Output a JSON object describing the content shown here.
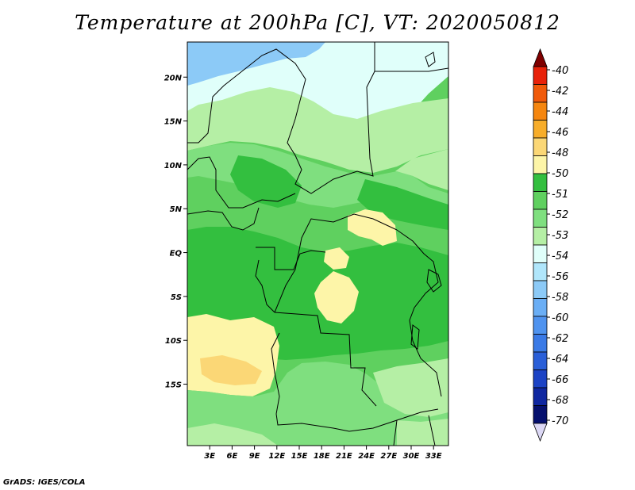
{
  "title": "Temperature at 200hPa [C], VT: 2020050812",
  "credit": "GrADS: IGES/COLA",
  "map": {
    "lon_range": [
      0,
      35
    ],
    "lat_range": [
      -22,
      24
    ],
    "lat_ticks": [
      {
        "value": 20,
        "label": "20N"
      },
      {
        "value": 15,
        "label": "15N"
      },
      {
        "value": 10,
        "label": "10N"
      },
      {
        "value": 5,
        "label": "5N"
      },
      {
        "value": 0,
        "label": "EQ"
      },
      {
        "value": -5,
        "label": "5S"
      },
      {
        "value": -10,
        "label": "10S"
      },
      {
        "value": -15,
        "label": "15S"
      }
    ],
    "lon_ticks": [
      {
        "value": 3,
        "label": "3E"
      },
      {
        "value": 6,
        "label": "6E"
      },
      {
        "value": 9,
        "label": "9E"
      },
      {
        "value": 12,
        "label": "12E"
      },
      {
        "value": 15,
        "label": "15E"
      },
      {
        "value": 18,
        "label": "18E"
      },
      {
        "value": 21,
        "label": "21E"
      },
      {
        "value": 24,
        "label": "24E"
      },
      {
        "value": 27,
        "label": "27E"
      },
      {
        "value": 30,
        "label": "30E"
      },
      {
        "value": 33,
        "label": "33E"
      }
    ]
  },
  "colorbar": {
    "colors": [
      "#7f0000",
      "#e8220a",
      "#f05a0a",
      "#f5860f",
      "#f7ad2a",
      "#fbd776",
      "#fdf5a8",
      "#33bf3f",
      "#5fd05f",
      "#7fdf7f",
      "#b5efa5",
      "#e0fffa",
      "#b0e6fb",
      "#8ccaf7",
      "#6aaef5",
      "#4f93ef",
      "#3a7ae6",
      "#2a5fd8",
      "#1c43c5",
      "#0f27a0",
      "#05106e",
      "#dcd8f5"
    ],
    "labels": [
      "-40",
      "-42",
      "-44",
      "-46",
      "-48",
      "-50",
      "-51",
      "-52",
      "-53",
      "-54",
      "-56",
      "-58",
      "-60",
      "-62",
      "-64",
      "-66",
      "-68",
      "-70"
    ]
  },
  "fill_colors": {
    "lt54": "#e0fffa",
    "blue56": "#8ccaf7",
    "light53": "#b5efa5",
    "mid52": "#7fdf7f",
    "green51": "#5fd05f",
    "dark": "#33bf3f",
    "yellow": "#fdf5a8",
    "tan": "#fbd776"
  }
}
